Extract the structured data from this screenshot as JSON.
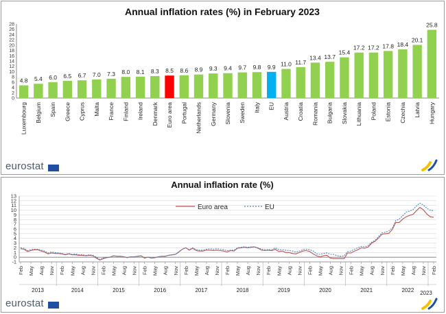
{
  "colors": {
    "bar": "#92d050",
    "euro_area": "#ff0000",
    "eu": "#00b0f0",
    "line_euro": "#c0504d",
    "line_eu": "#4f81bd",
    "brand_text": "#4c5b6b",
    "flag": "#1f4fa0"
  },
  "branding": {
    "logo_text": "eurostat"
  },
  "chart_data": [
    {
      "type": "bar",
      "title": "Annual inflation rates (%) in February 2023",
      "categories": [
        "Luxembourg",
        "Belgium",
        "Spain",
        "Greece",
        "Cyprus",
        "Malta",
        "France",
        "Finland",
        "Ireland",
        "Denmark",
        "Euro area",
        "Portugal",
        "Netherlands",
        "Germany",
        "Slovenia",
        "Sweden",
        "Italy",
        "EU",
        "Austria",
        "Croatia",
        "Romania",
        "Bulgaria",
        "Slovakia",
        "Lithuania",
        "Poland",
        "Estonia",
        "Czechia",
        "Latvia",
        "Hungary"
      ],
      "values": [
        4.8,
        5.4,
        6.0,
        6.5,
        6.7,
        7.0,
        7.3,
        8.0,
        8.1,
        8.3,
        8.5,
        8.6,
        8.9,
        9.3,
        9.4,
        9.7,
        9.8,
        9.9,
        11.0,
        11.7,
        13.4,
        13.7,
        15.4,
        17.2,
        17.2,
        17.8,
        18.4,
        20.1,
        25.8
      ],
      "value_labels": [
        "4.8",
        "5.4",
        "6.0",
        "6.5",
        "6.7",
        "7.0",
        "7.3",
        "8.0",
        "8.1",
        "8.3",
        "8.5",
        "8.6",
        "8.9",
        "9.3",
        "9.4",
        "9.7",
        "9.8",
        "9.9",
        "11.0",
        "11.7",
        "13.4",
        "13.7",
        "15.4",
        "17.2",
        "17.2",
        "17.8",
        "18.4",
        "20.1",
        "25.8"
      ],
      "highlight": {
        "Euro area": "euro_area",
        "EU": "eu"
      },
      "ylim": [
        0,
        28
      ],
      "yticks": [
        "0",
        "2",
        "4",
        "6",
        "8",
        "10",
        "12",
        "14",
        "16",
        "18",
        "20",
        "22",
        "24",
        "26",
        "28"
      ],
      "grid": false
    },
    {
      "type": "line",
      "title": "Annual  inflation rate (%)",
      "x": [
        "2013-02",
        "2013-03",
        "2013-04",
        "2013-05",
        "2013-06",
        "2013-07",
        "2013-08",
        "2013-09",
        "2013-10",
        "2013-11",
        "2013-12",
        "2014-01",
        "2014-02",
        "2014-03",
        "2014-04",
        "2014-05",
        "2014-06",
        "2014-07",
        "2014-08",
        "2014-09",
        "2014-10",
        "2014-11",
        "2014-12",
        "2015-01",
        "2015-02",
        "2015-03",
        "2015-04",
        "2015-05",
        "2015-06",
        "2015-07",
        "2015-08",
        "2015-09",
        "2015-10",
        "2015-11",
        "2015-12",
        "2016-01",
        "2016-02",
        "2016-03",
        "2016-04",
        "2016-05",
        "2016-06",
        "2016-07",
        "2016-08",
        "2016-09",
        "2016-10",
        "2016-11",
        "2016-12",
        "2017-01",
        "2017-02",
        "2017-03",
        "2017-04",
        "2017-05",
        "2017-06",
        "2017-07",
        "2017-08",
        "2017-09",
        "2017-10",
        "2017-11",
        "2017-12",
        "2018-01",
        "2018-02",
        "2018-03",
        "2018-04",
        "2018-05",
        "2018-06",
        "2018-07",
        "2018-08",
        "2018-09",
        "2018-10",
        "2018-11",
        "2018-12",
        "2019-01",
        "2019-02",
        "2019-03",
        "2019-04",
        "2019-05",
        "2019-06",
        "2019-07",
        "2019-08",
        "2019-09",
        "2019-10",
        "2019-11",
        "2019-12",
        "2020-01",
        "2020-02",
        "2020-03",
        "2020-04",
        "2020-05",
        "2020-06",
        "2020-07",
        "2020-08",
        "2020-09",
        "2020-10",
        "2020-11",
        "2020-12",
        "2021-01",
        "2021-02",
        "2021-03",
        "2021-04",
        "2021-05",
        "2021-06",
        "2021-07",
        "2021-08",
        "2021-09",
        "2021-10",
        "2021-11",
        "2021-12",
        "2022-01",
        "2022-02",
        "2022-03",
        "2022-04",
        "2022-05",
        "2022-06",
        "2022-07",
        "2022-08",
        "2022-09",
        "2022-10",
        "2022-11",
        "2022-12",
        "2023-01",
        "2023-02"
      ],
      "series": [
        {
          "name": "Euro area",
          "color_key": "line_euro",
          "dash": false,
          "values": [
            1.8,
            1.7,
            1.2,
            1.4,
            1.6,
            1.6,
            1.3,
            1.1,
            0.7,
            0.9,
            0.8,
            0.8,
            0.7,
            0.5,
            0.7,
            0.5,
            0.5,
            0.4,
            0.4,
            0.3,
            0.4,
            0.3,
            -0.2,
            -0.6,
            -0.3,
            -0.1,
            0.0,
            0.3,
            0.2,
            0.2,
            0.1,
            -0.1,
            0.1,
            0.1,
            0.2,
            0.3,
            -0.2,
            0.0,
            -0.2,
            -0.1,
            0.1,
            0.2,
            0.2,
            0.4,
            0.5,
            0.6,
            1.1,
            1.7,
            2.0,
            1.5,
            1.9,
            1.4,
            1.3,
            1.3,
            1.5,
            1.5,
            1.4,
            1.5,
            1.4,
            1.3,
            1.1,
            1.4,
            1.3,
            1.9,
            2.0,
            2.1,
            2.0,
            2.1,
            2.2,
            1.9,
            1.5,
            1.4,
            1.5,
            1.4,
            1.7,
            1.2,
            1.3,
            1.0,
            1.0,
            0.8,
            0.7,
            1.0,
            1.3,
            1.4,
            1.2,
            0.7,
            0.3,
            0.1,
            0.3,
            0.4,
            -0.2,
            -0.3,
            -0.3,
            -0.3,
            -0.3,
            0.9,
            0.9,
            1.3,
            1.6,
            2.0,
            1.9,
            2.2,
            3.0,
            3.4,
            4.1,
            4.9,
            5.0,
            5.1,
            5.9,
            7.4,
            7.4,
            8.1,
            8.6,
            8.9,
            9.1,
            9.9,
            10.6,
            10.1,
            9.2,
            8.6,
            8.5
          ]
        },
        {
          "name": "EU",
          "color_key": "line_eu",
          "dash": true,
          "values": [
            2.0,
            1.9,
            1.4,
            1.6,
            1.7,
            1.7,
            1.5,
            1.3,
            0.9,
            1.1,
            1.0,
            0.9,
            0.8,
            0.6,
            0.8,
            0.6,
            0.7,
            0.5,
            0.5,
            0.4,
            0.5,
            0.4,
            0.0,
            -0.5,
            -0.2,
            -0.1,
            0.0,
            0.3,
            0.2,
            0.2,
            0.1,
            -0.1,
            0.1,
            0.1,
            0.2,
            0.3,
            -0.1,
            0.0,
            -0.2,
            -0.1,
            0.1,
            0.2,
            0.2,
            0.4,
            0.5,
            0.6,
            1.2,
            1.7,
            2.0,
            1.6,
            2.0,
            1.6,
            1.5,
            1.5,
            1.7,
            1.8,
            1.7,
            1.8,
            1.7,
            1.6,
            1.4,
            1.5,
            1.5,
            2.0,
            2.1,
            2.2,
            2.1,
            2.2,
            2.2,
            2.0,
            1.7,
            1.6,
            1.6,
            1.6,
            2.0,
            1.6,
            1.6,
            1.5,
            1.4,
            1.3,
            1.1,
            1.3,
            1.6,
            1.7,
            1.6,
            1.3,
            0.7,
            0.6,
            0.8,
            0.9,
            0.6,
            0.6,
            0.3,
            0.2,
            0.3,
            1.2,
            1.3,
            1.7,
            2.0,
            2.3,
            2.2,
            2.5,
            3.2,
            3.6,
            4.4,
            5.2,
            5.3,
            5.6,
            6.2,
            7.8,
            8.1,
            8.8,
            9.6,
            9.8,
            10.1,
            10.9,
            11.5,
            11.1,
            10.4,
            10.0,
            9.9
          ]
        }
      ],
      "legend": {
        "position": "top-center"
      },
      "ylim": [
        -1,
        13
      ],
      "yticks": [
        "-1",
        "0",
        "1",
        "2",
        "3",
        "4",
        "5",
        "6",
        "7",
        "8",
        "9",
        "10",
        "11",
        "12",
        "13"
      ],
      "month_ticks": [
        "Feb",
        "May",
        "Aug",
        "Nov"
      ],
      "years": [
        "2013",
        "2014",
        "2015",
        "2016",
        "2017",
        "2018",
        "2019",
        "2020",
        "2021",
        "2022",
        "2023"
      ],
      "grid": true
    }
  ]
}
